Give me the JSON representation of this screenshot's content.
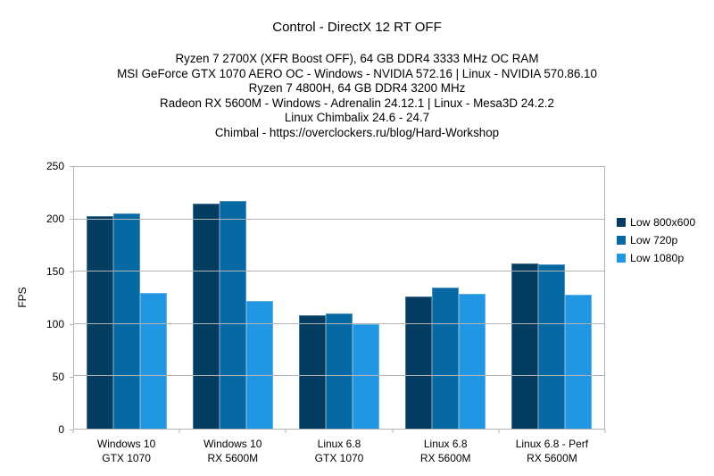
{
  "page": {
    "background": "#ffffff"
  },
  "chart": {
    "title": "Control - DirectX 12 RT OFF",
    "subtitle_lines": [
      "Ryzen 7 2700X (XFR Boost OFF), 64 GB DDR4 3333 MHz OC RAM",
      "MSI GeForce GTX 1070 AERO OC - Windows - NVIDIA 572.16 | Linux - NVIDIA 570.86.10",
      "Ryzen 7 4800H, 64 GB DDR4 3200 MHz",
      "Radeon RX 5600M - Windows - Adrenalin 24.12.1 | Linux - Mesa3D 24.2.2",
      "Linux Chimbalix 24.6 - 24.7",
      "Chimbal - https://overclockers.ru/blog/Hard-Workshop"
    ],
    "colors": {
      "grid": "#b3b3b3",
      "text": "#000000"
    }
  },
  "chart_data": {
    "type": "bar",
    "title": "Control - DirectX 12 RT OFF",
    "ylabel": "FPS",
    "xlabel": "",
    "ylim": [
      0,
      250
    ],
    "ytick_step": 50,
    "ytick_labels": [
      "0",
      "50",
      "100",
      "150",
      "200",
      "250"
    ],
    "grid": true,
    "legend_position": "right",
    "categories": [
      [
        "Windows 10",
        "GTX 1070"
      ],
      [
        "Windows 10",
        "RX 5600M"
      ],
      [
        "Linux 6.8",
        "GTX 1070"
      ],
      [
        "Linux 6.8",
        "RX 5600M"
      ],
      [
        "Linux 6.8 - Perf",
        "RX 5600M"
      ]
    ],
    "series": [
      {
        "name": "Low 800x600",
        "color": "#053d62",
        "values": [
          203,
          215,
          108,
          126,
          158
        ]
      },
      {
        "name": "Low 720p",
        "color": "#0669a4",
        "values": [
          206,
          218,
          110,
          135,
          157
        ]
      },
      {
        "name": "Low 1080p",
        "color": "#2196e2",
        "values": [
          130,
          122,
          100,
          129,
          128
        ]
      }
    ]
  }
}
